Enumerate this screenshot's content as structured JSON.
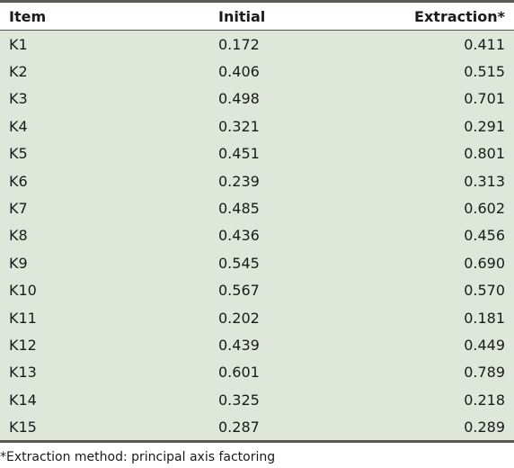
{
  "table": {
    "headers": [
      "Item",
      "Initial",
      "Extraction*"
    ],
    "rows": [
      [
        "K1",
        "0.172",
        "0.411"
      ],
      [
        "K2",
        "0.406",
        "0.515"
      ],
      [
        "K3",
        "0.498",
        "0.701"
      ],
      [
        "K4",
        "0.321",
        "0.291"
      ],
      [
        "K5",
        "0.451",
        "0.801"
      ],
      [
        "K6",
        "0.239",
        "0.313"
      ],
      [
        "K7",
        "0.485",
        "0.602"
      ],
      [
        "K8",
        "0.436",
        "0.456"
      ],
      [
        "K9",
        "0.545",
        "0.690"
      ],
      [
        "K10",
        "0.567",
        "0.570"
      ],
      [
        "K11",
        "0.202",
        "0.181"
      ],
      [
        "K12",
        "0.439",
        "0.449"
      ],
      [
        "K13",
        "0.601",
        "0.789"
      ],
      [
        "K14",
        "0.325",
        "0.218"
      ],
      [
        "K15",
        "0.287",
        "0.289"
      ]
    ]
  },
  "footnote": "*Extraction method: principal axis factoring",
  "colors": {
    "body_background": "#dfe7da",
    "rule": "#555a52"
  }
}
